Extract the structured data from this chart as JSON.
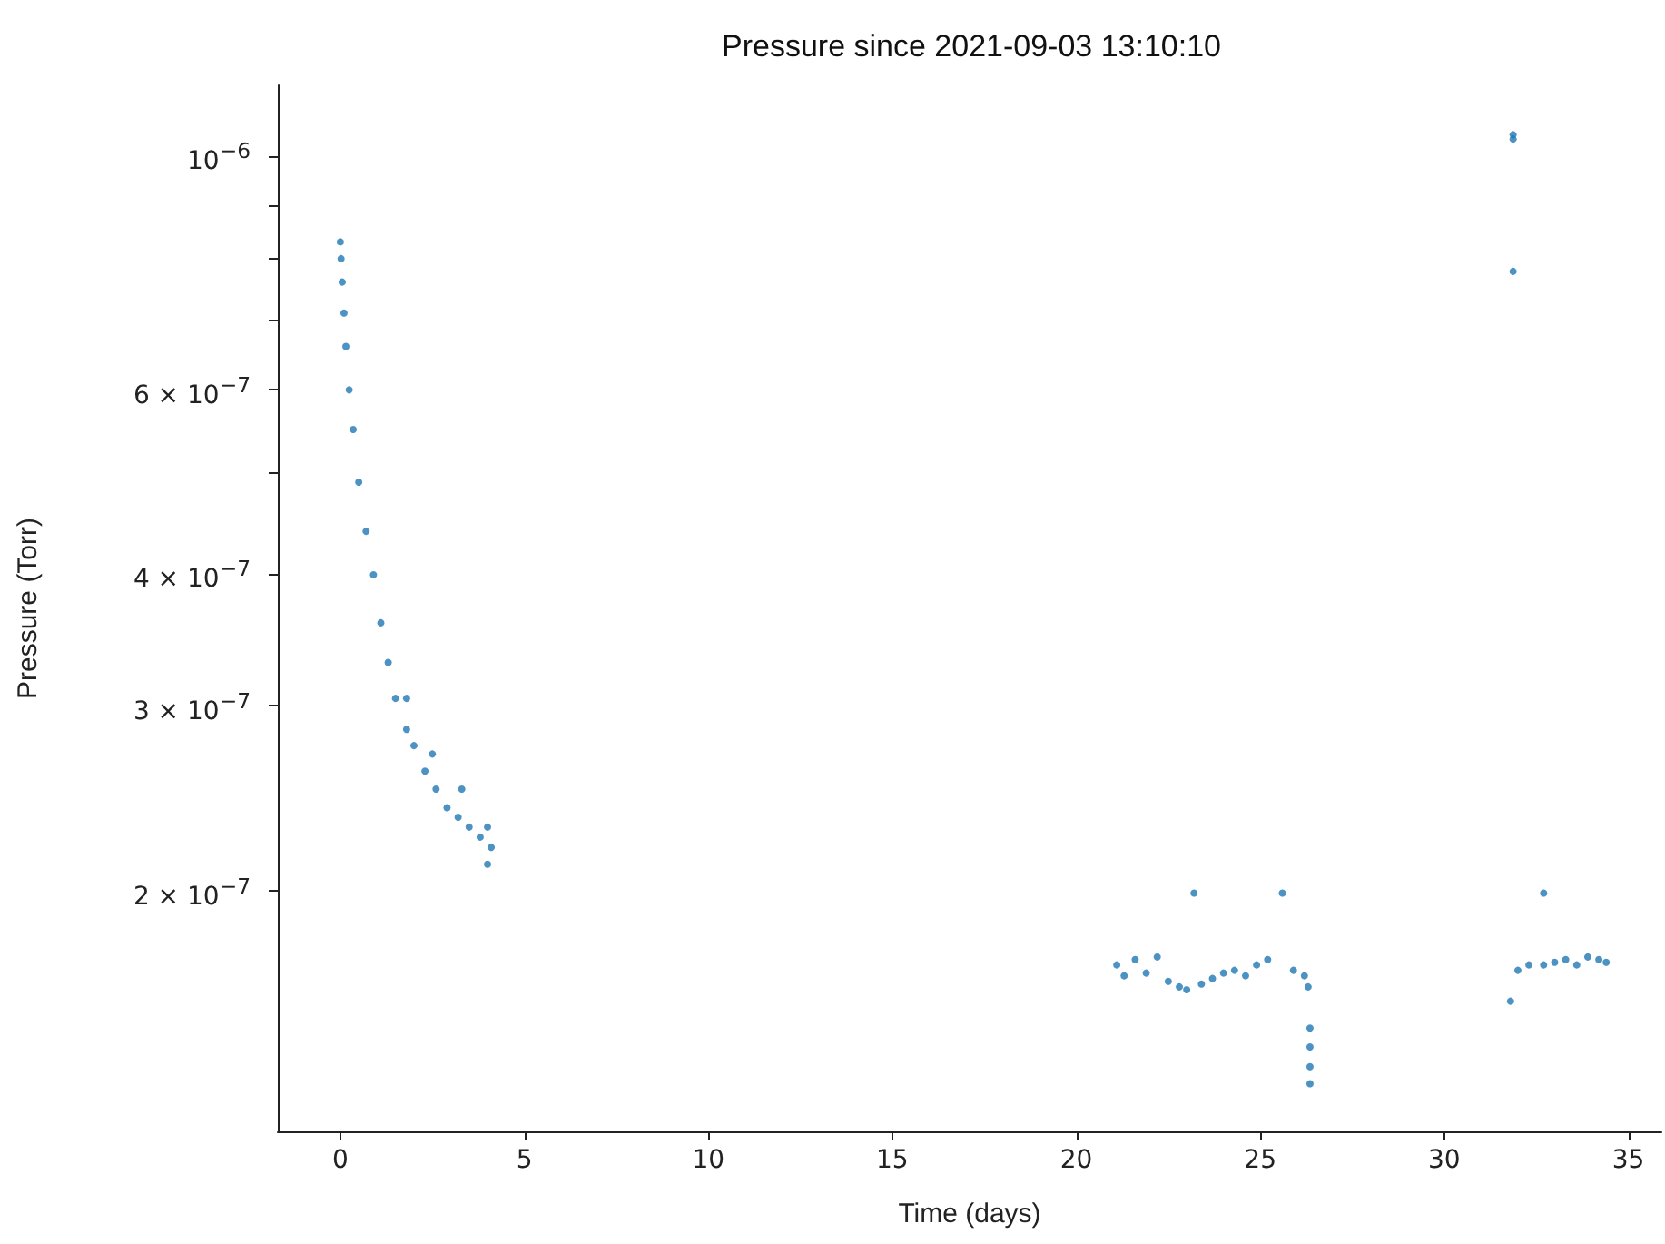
{
  "chart_data": {
    "type": "scatter",
    "title": "Pressure since 2021-09-03 13:10:10",
    "xlabel": "Time (days)",
    "ylabel": "Pressure (Torr)",
    "log": "y",
    "grid": false,
    "marker": "circle",
    "xlim": [
      -1.7,
      35.9
    ],
    "xticks": [
      0,
      5,
      10,
      15,
      20,
      25,
      30,
      35
    ],
    "ylim": [
      1.18e-07,
      1.17e-06
    ],
    "yticks": [
      {
        "value": 1e-06,
        "label": "10$^{−6}$"
      },
      {
        "value": 9e-07,
        "label": null
      },
      {
        "value": 8e-07,
        "label": null
      },
      {
        "value": 7e-07,
        "label": null
      },
      {
        "value": 6e-07,
        "label": "6 × 10$^{−7}$"
      },
      {
        "value": 5e-07,
        "label": null
      },
      {
        "value": 4e-07,
        "label": "4 × 10$^{−7}$"
      },
      {
        "value": 3e-07,
        "label": "3 × 10$^{−7}$"
      },
      {
        "value": 2e-07,
        "label": "2 × 10$^{−7}$"
      }
    ],
    "series": [
      {
        "color": "#1f77b4",
        "x": [
          0,
          0.02,
          0.05,
          0.1,
          0.15,
          0.24,
          0.35,
          0.5,
          0.7,
          0.9,
          1.1,
          1.3,
          1.5,
          1.8,
          1.8,
          2.0,
          2.3,
          2.5,
          2.6,
          2.9,
          3.2,
          3.3,
          3.5,
          3.8,
          4.0,
          4.0,
          4.1,
          21.1,
          21.3,
          21.6,
          21.9,
          22.2,
          22.5,
          22.8,
          23.0,
          23.2,
          23.4,
          23.7,
          24.0,
          24.3,
          24.6,
          24.9,
          25.2,
          25.6,
          25.9,
          26.2,
          26.3,
          26.35,
          26.35,
          26.35,
          26.35,
          31.87,
          31.87,
          31.87,
          31.8,
          32.0,
          32.3,
          32.7,
          32.7,
          33.0,
          33.3,
          33.6,
          33.9,
          34.2,
          34.4
        ],
        "values": [
          8.3e-07,
          8e-07,
          7.6e-07,
          7.1e-07,
          6.6e-07,
          6e-07,
          5.5e-07,
          4.9e-07,
          4.4e-07,
          4e-07,
          3.6e-07,
          3.3e-07,
          3.05e-07,
          2.85e-07,
          3.05e-07,
          2.75e-07,
          2.6e-07,
          2.7e-07,
          2.5e-07,
          2.4e-07,
          2.35e-07,
          2.5e-07,
          2.3e-07,
          2.25e-07,
          2.3e-07,
          2.12e-07,
          2.2e-07,
          1.7e-07,
          1.66e-07,
          1.72e-07,
          1.67e-07,
          1.73e-07,
          1.64e-07,
          1.62e-07,
          1.61e-07,
          1.99e-07,
          1.63e-07,
          1.65e-07,
          1.67e-07,
          1.68e-07,
          1.66e-07,
          1.7e-07,
          1.72e-07,
          1.99e-07,
          1.68e-07,
          1.66e-07,
          1.62e-07,
          1.48e-07,
          1.42e-07,
          1.36e-07,
          1.31e-07,
          1.05e-06,
          1.04e-06,
          7.78e-07,
          1.57e-07,
          1.68e-07,
          1.7e-07,
          1.99e-07,
          1.7e-07,
          1.71e-07,
          1.72e-07,
          1.7e-07,
          1.73e-07,
          1.72e-07,
          1.71e-07
        ]
      }
    ]
  }
}
